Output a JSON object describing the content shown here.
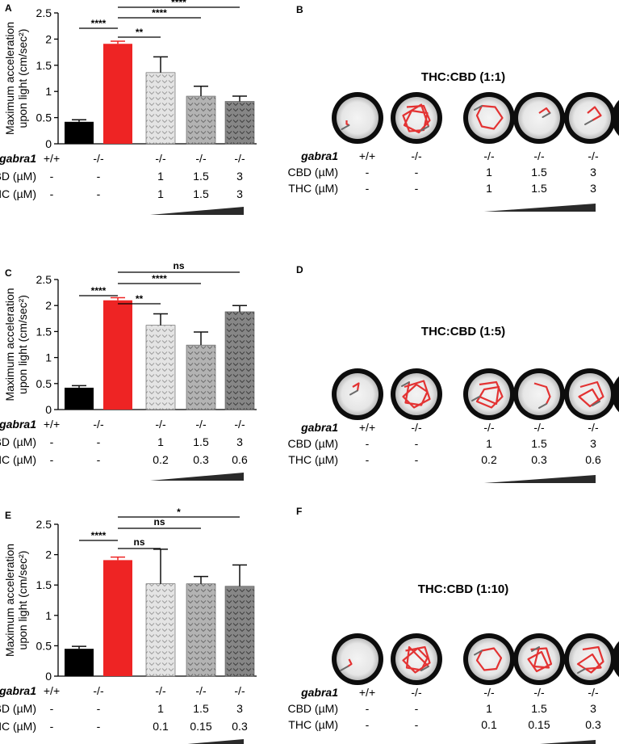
{
  "panel_letters": [
    "A",
    "B",
    "C",
    "D",
    "E",
    "F"
  ],
  "row_labels": {
    "gabra1": "gabra1",
    "cbd": "CBD (µM)",
    "thc": "THC (µM)"
  },
  "ylabel_line1": "Maximum acceleration",
  "ylabel_line2": "upon light (cm/sec²)",
  "colors": {
    "wt": "#000000",
    "mut": "#ee2424",
    "t1": "#dcdcdc",
    "t2": "#a8a8a8",
    "t3": "#7a7a7a",
    "track": "#e33333"
  },
  "chart_data": [
    {
      "type": "bar",
      "panel": "A",
      "categories": [
        "+/+",
        "-/-",
        "-/-",
        "-/-",
        "-/-"
      ],
      "values": [
        0.42,
        1.91,
        1.36,
        0.91,
        0.81
      ],
      "errors": [
        0.04,
        0.05,
        0.3,
        0.19,
        0.1
      ],
      "ylim": [
        0,
        2.5
      ],
      "yticks": [
        "0",
        "0.5",
        "1",
        "1.5",
        "2",
        "2.5"
      ],
      "xlabel": "",
      "ylabel": "Maximum acceleration upon light (cm/sec²)",
      "cbd": [
        "-",
        "-",
        "1",
        "1.5",
        "3"
      ],
      "thc": [
        "-",
        "-",
        "1",
        "1.5",
        "3"
      ],
      "significance": [
        {
          "from": 0,
          "to": 1,
          "label": "****"
        },
        {
          "from": 1,
          "to": 2,
          "label": "**"
        },
        {
          "from": 1,
          "to": 3,
          "label": "****"
        },
        {
          "from": 1,
          "to": 4,
          "label": "****"
        }
      ]
    },
    {
      "type": "bar",
      "panel": "C",
      "categories": [
        "+/+",
        "-/-",
        "-/-",
        "-/-",
        "-/-"
      ],
      "values": [
        0.42,
        2.1,
        1.62,
        1.24,
        1.88
      ],
      "errors": [
        0.04,
        0.05,
        0.22,
        0.25,
        0.12
      ],
      "ylim": [
        0,
        2.5
      ],
      "yticks": [
        "0",
        "0.5",
        "1",
        "1.5",
        "2",
        "2.5"
      ],
      "xlabel": "",
      "ylabel": "Maximum acceleration upon light (cm/sec²)",
      "cbd": [
        "-",
        "-",
        "1",
        "1.5",
        "3"
      ],
      "thc": [
        "-",
        "-",
        "0.2",
        "0.3",
        "0.6"
      ],
      "significance": [
        {
          "from": 0,
          "to": 1,
          "label": "****"
        },
        {
          "from": 1,
          "to": 2,
          "label": "**"
        },
        {
          "from": 1,
          "to": 3,
          "label": "****"
        },
        {
          "from": 1,
          "to": 4,
          "label": "ns"
        }
      ]
    },
    {
      "type": "bar",
      "panel": "E",
      "categories": [
        "+/+",
        "-/-",
        "-/-",
        "-/-",
        "-/-"
      ],
      "values": [
        0.45,
        1.91,
        1.52,
        1.52,
        1.48
      ],
      "errors": [
        0.04,
        0.05,
        0.57,
        0.12,
        0.35
      ],
      "ylim": [
        0,
        2.5
      ],
      "yticks": [
        "0",
        "0.5",
        "1",
        "1.5",
        "2",
        "2.5"
      ],
      "xlabel": "",
      "ylabel": "Maximum acceleration upon light (cm/sec²)",
      "cbd": [
        "-",
        "-",
        "1",
        "1.5",
        "3"
      ],
      "thc": [
        "-",
        "-",
        "0.1",
        "0.15",
        "0.3"
      ],
      "significance": [
        {
          "from": 0,
          "to": 1,
          "label": "****"
        },
        {
          "from": 1,
          "to": 2,
          "label": "ns"
        },
        {
          "from": 1,
          "to": 3,
          "label": "ns"
        },
        {
          "from": 1,
          "to": 4,
          "label": "*"
        }
      ]
    }
  ],
  "track_panels": [
    {
      "panel": "B",
      "title": "THC:CBD (1:1)",
      "categories": [
        "+/+",
        "-/-",
        "-/-",
        "-/-",
        "-/-"
      ],
      "cbd": [
        "-",
        "-",
        "1",
        "1.5",
        "3"
      ],
      "thc": [
        "-",
        "-",
        "1",
        "1.5",
        "3"
      ]
    },
    {
      "panel": "D",
      "title": "THC:CBD (1:5)",
      "categories": [
        "+/+",
        "-/-",
        "-/-",
        "-/-",
        "-/-"
      ],
      "cbd": [
        "-",
        "-",
        "1",
        "1.5",
        "3"
      ],
      "thc": [
        "-",
        "-",
        "0.2",
        "0.3",
        "0.6"
      ]
    },
    {
      "panel": "F",
      "title": "THC:CBD (1:10)",
      "categories": [
        "+/+",
        "-/-",
        "-/-",
        "-/-",
        "-/-"
      ],
      "cbd": [
        "-",
        "-",
        "1",
        "1.5",
        "3"
      ],
      "thc": [
        "-",
        "-",
        "0.1",
        "0.15",
        "0.3"
      ]
    }
  ]
}
